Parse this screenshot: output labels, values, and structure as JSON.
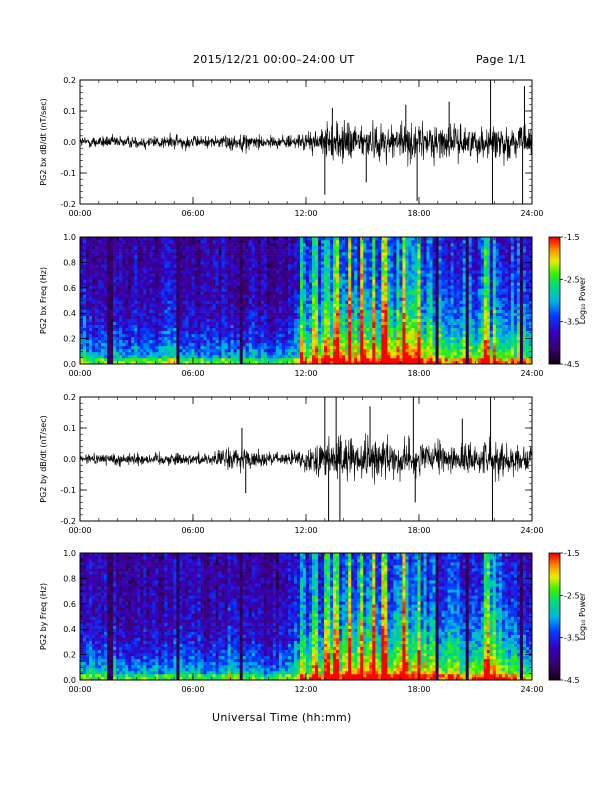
{
  "header": {
    "title": "2015/12/21  00:00–24:00 UT",
    "page": "Page 1/1"
  },
  "xaxis_title": "Universal Time (hh:mm)",
  "chart_data": [
    {
      "type": "line",
      "ylabel": "PG2 bx dB/dt (nT/sec)",
      "xlim": [
        "00:00",
        "24:00"
      ],
      "xticks": [
        "00:00",
        "06:00",
        "12:00",
        "18:00",
        "24:00"
      ],
      "ylim": [
        -0.2,
        0.2
      ],
      "yticks": [
        "-0.2",
        "-0.1",
        "0.0",
        "0.1",
        "0.2"
      ],
      "envelope": {
        "hour": [
          0,
          1,
          2,
          3,
          4,
          5,
          6,
          7,
          8,
          9,
          10,
          11,
          12,
          13,
          14,
          15,
          16,
          17,
          18,
          19,
          20,
          21,
          22,
          23,
          24
        ],
        "amplitude": [
          0.025,
          0.03,
          0.03,
          0.03,
          0.035,
          0.035,
          0.03,
          0.025,
          0.04,
          0.04,
          0.03,
          0.03,
          0.04,
          0.07,
          0.09,
          0.08,
          0.08,
          0.09,
          0.09,
          0.08,
          0.08,
          0.07,
          0.09,
          0.08,
          0.06
        ]
      },
      "spikes": [
        {
          "hour": 13.0,
          "value": -0.17
        },
        {
          "hour": 13.4,
          "value": 0.11
        },
        {
          "hour": 17.9,
          "value": -0.19
        },
        {
          "hour": 17.3,
          "value": 0.12
        },
        {
          "hour": 21.8,
          "value": 0.2
        },
        {
          "hour": 21.9,
          "value": -0.2
        },
        {
          "hour": 23.5,
          "value": -0.2
        },
        {
          "hour": 23.6,
          "value": 0.18
        },
        {
          "hour": 15.2,
          "value": -0.13
        },
        {
          "hour": 19.6,
          "value": 0.13
        }
      ]
    },
    {
      "type": "heatmap",
      "ylabel": "PG2 bx Freq (Hz)",
      "xlim": [
        "00:00",
        "24:00"
      ],
      "xticks": [
        "00:00",
        "06:00",
        "12:00",
        "18:00",
        "24:00"
      ],
      "ylim": [
        0.0,
        1.0
      ],
      "yticks": [
        "0.0",
        "0.2",
        "0.4",
        "0.6",
        "0.8",
        "1.0"
      ],
      "colorbar": {
        "label": "Log₁₀ Power",
        "range": [
          -4.5,
          -1.5
        ],
        "ticks": [
          "-1.5",
          "-2.5",
          "-3.5",
          "-4.5"
        ]
      },
      "activity_by_hour": [
        0.45,
        0.4,
        0.4,
        0.35,
        0.4,
        0.4,
        0.35,
        0.3,
        0.35,
        0.35,
        0.3,
        0.35,
        0.55,
        0.75,
        0.85,
        0.85,
        0.85,
        0.9,
        0.85,
        0.75,
        0.7,
        0.7,
        0.7,
        0.7,
        0.6
      ],
      "dark_stripes_hours": [
        1.6,
        5.2,
        8.6,
        19.0,
        20.6,
        23.4
      ],
      "bright_columns_hours": [
        11.8,
        12.5,
        13.1,
        13.6,
        14.3,
        15.0,
        15.6,
        16.2,
        17.2,
        18.0,
        21.6,
        22.0
      ]
    },
    {
      "type": "line",
      "ylabel": "PG2 by dB/dt (nT/sec)",
      "xlim": [
        "00:00",
        "24:00"
      ],
      "xticks": [
        "00:00",
        "06:00",
        "12:00",
        "18:00",
        "24:00"
      ],
      "ylim": [
        -0.2,
        0.2
      ],
      "yticks": [
        "-0.2",
        "-0.1",
        "0.0",
        "0.1",
        "0.2"
      ],
      "envelope": {
        "hour": [
          0,
          1,
          2,
          3,
          4,
          5,
          6,
          7,
          8,
          9,
          10,
          11,
          12,
          13,
          14,
          15,
          16,
          17,
          18,
          19,
          20,
          21,
          22,
          23,
          24
        ],
        "amplitude": [
          0.025,
          0.025,
          0.03,
          0.03,
          0.03,
          0.03,
          0.025,
          0.03,
          0.06,
          0.05,
          0.03,
          0.03,
          0.05,
          0.09,
          0.1,
          0.1,
          0.09,
          0.08,
          0.08,
          0.07,
          0.07,
          0.07,
          0.09,
          0.07,
          0.06
        ]
      },
      "spikes": [
        {
          "hour": 8.6,
          "value": 0.1
        },
        {
          "hour": 8.8,
          "value": -0.11
        },
        {
          "hour": 13.0,
          "value": 0.2
        },
        {
          "hour": 13.2,
          "value": -0.2
        },
        {
          "hour": 13.6,
          "value": 0.2
        },
        {
          "hour": 13.8,
          "value": -0.2
        },
        {
          "hour": 15.4,
          "value": 0.17
        },
        {
          "hour": 17.7,
          "value": 0.2
        },
        {
          "hour": 17.8,
          "value": -0.14
        },
        {
          "hour": 21.8,
          "value": 0.2
        },
        {
          "hour": 21.9,
          "value": -0.2
        },
        {
          "hour": 20.3,
          "value": 0.13
        }
      ]
    },
    {
      "type": "heatmap",
      "ylabel": "PG2 by Freq (Hz)",
      "xlim": [
        "00:00",
        "24:00"
      ],
      "xticks": [
        "00:00",
        "06:00",
        "12:00",
        "18:00",
        "24:00"
      ],
      "ylim": [
        0.0,
        1.0
      ],
      "yticks": [
        "0.0",
        "0.2",
        "0.4",
        "0.6",
        "0.8",
        "1.0"
      ],
      "colorbar": {
        "label": "Log₁₀ Power",
        "range": [
          -4.5,
          -1.5
        ],
        "ticks": [
          "-1.5",
          "-2.5",
          "-3.5",
          "-4.5"
        ]
      },
      "activity_by_hour": [
        0.45,
        0.4,
        0.4,
        0.35,
        0.35,
        0.35,
        0.35,
        0.3,
        0.45,
        0.4,
        0.3,
        0.35,
        0.55,
        0.75,
        0.85,
        0.9,
        0.85,
        0.9,
        0.85,
        0.75,
        0.7,
        0.75,
        0.75,
        0.7,
        0.6
      ],
      "dark_stripes_hours": [
        1.6,
        5.2,
        8.6,
        19.0,
        20.6,
        23.4
      ],
      "bright_columns_hours": [
        11.8,
        12.5,
        13.1,
        13.6,
        14.3,
        15.0,
        15.6,
        16.2,
        17.2,
        18.0,
        21.6,
        22.0
      ]
    }
  ]
}
